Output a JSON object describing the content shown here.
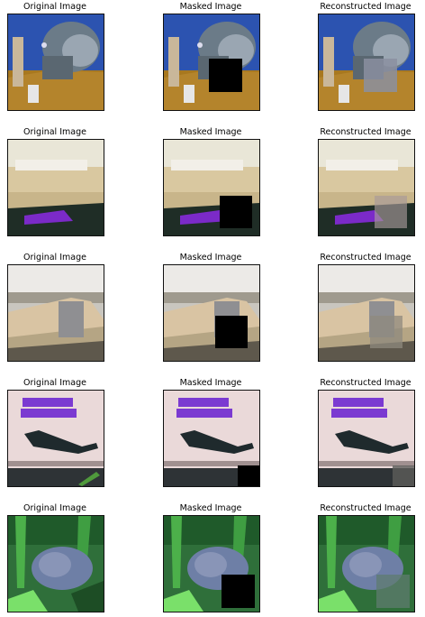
{
  "rows": [
    {
      "original": "Original Image",
      "masked": "Masked Image",
      "reconstructed": "Reconstructed Image",
      "subject": "cat on brown floor",
      "colors": {
        "bg": "#3a5aa8",
        "main": "#6d7b86",
        "accent": "#b08028"
      }
    },
    {
      "original": "Original Image",
      "masked": "Masked Image",
      "reconstructed": "Reconstructed Image",
      "subject": "white boat with purple hull",
      "colors": {
        "bg": "#e8e6d8",
        "main": "#c7b27a",
        "accent": "#7b2ac8"
      }
    },
    {
      "original": "Original Image",
      "masked": "Masked Image",
      "reconstructed": "Reconstructed Image",
      "subject": "beige ship",
      "colors": {
        "bg": "#b7b3a7",
        "main": "#d8c7a8",
        "accent": "#6b6457"
      }
    },
    {
      "original": "Original Image",
      "masked": "Masked Image",
      "reconstructed": "Reconstructed Image",
      "subject": "aircraft with purple text sign",
      "colors": {
        "bg": "#e8d8d8",
        "main": "#1f2a2d",
        "accent": "#7b3ad1"
      }
    },
    {
      "original": "Original Image",
      "masked": "Masked Image",
      "reconstructed": "Reconstructed Image",
      "subject": "frog in green grass",
      "colors": {
        "bg": "#2f7f3f",
        "main": "#6e7fa0",
        "accent": "#0f3f1a"
      }
    }
  ]
}
